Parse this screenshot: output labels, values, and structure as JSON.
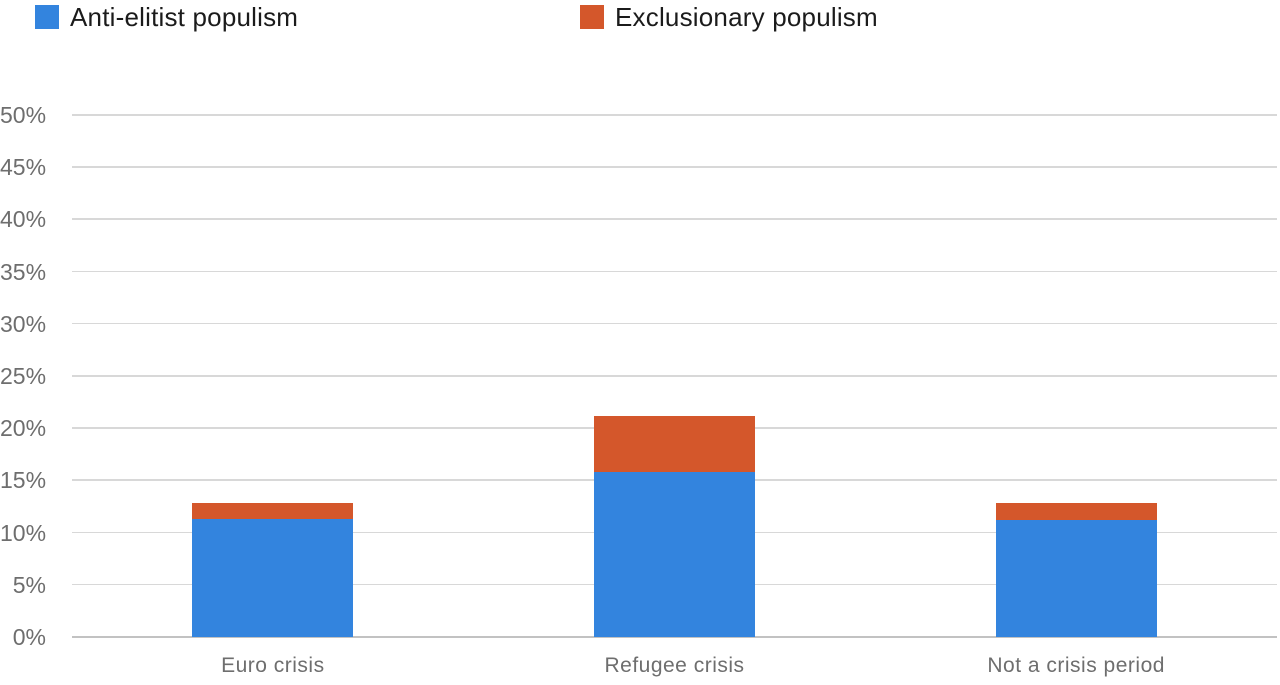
{
  "chart_data": {
    "type": "bar",
    "stacked": true,
    "title": "",
    "xlabel": "",
    "ylabel": "",
    "categories": [
      "Euro crisis",
      "Refugee crisis",
      "Not a crisis period"
    ],
    "series": [
      {
        "name": "Anti-elitist populism",
        "color": "#3384DE",
        "values": [
          11.3,
          15.8,
          11.2
        ]
      },
      {
        "name": "Exclusionary populism",
        "color": "#D4572B",
        "values": [
          1.5,
          5.4,
          1.6
        ]
      }
    ],
    "totals": [
      12.8,
      21.2,
      12.8
    ],
    "ylim": [
      0,
      50
    ],
    "ytick_step": 5,
    "ytick_labels": [
      "0%",
      "5%",
      "10%",
      "15%",
      "20%",
      "25%",
      "30%",
      "35%",
      "40%",
      "45%",
      "50%"
    ],
    "grid": true,
    "legend_position": "top"
  },
  "colors": {
    "background": "#FFFFFF",
    "legend_text": "#1B1B1B",
    "axis_label": "#6E6E6E",
    "gridline": "#D8D8D8",
    "baseline": "#C2C2C2"
  }
}
